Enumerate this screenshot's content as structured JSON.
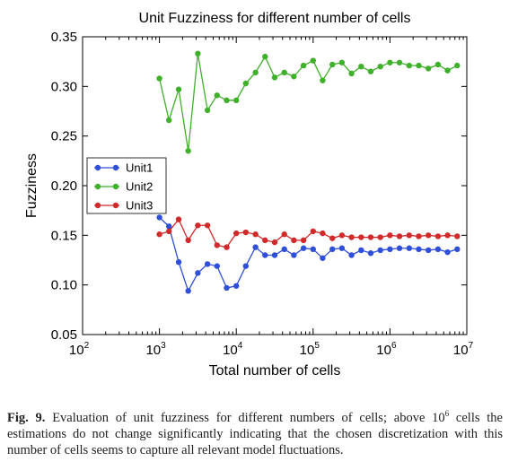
{
  "chart_data": {
    "type": "line",
    "title": "Unit Fuzziness for different number of cells",
    "xlabel": "Total number of cells",
    "ylabel": "Fuzziness",
    "x_scale": "log",
    "xlim": [
      100,
      10000000
    ],
    "ylim": [
      0.05,
      0.35
    ],
    "x_ticks": [
      {
        "base": "10",
        "exp": "2",
        "value": 100
      },
      {
        "base": "10",
        "exp": "3",
        "value": 1000
      },
      {
        "base": "10",
        "exp": "4",
        "value": 10000
      },
      {
        "base": "10",
        "exp": "5",
        "value": 100000
      },
      {
        "base": "10",
        "exp": "6",
        "value": 1000000
      },
      {
        "base": "10",
        "exp": "7",
        "value": 10000000
      }
    ],
    "y_ticks": [
      "0.05",
      "0.10",
      "0.15",
      "0.20",
      "0.25",
      "0.30",
      "0.35"
    ],
    "grid": false,
    "legend_position": "center-left",
    "x": [
      1000,
      1330,
      1780,
      2370,
      3160,
      4220,
      5620,
      7500,
      10000,
      13300,
      17800,
      23700,
      31600,
      42200,
      56200,
      75000,
      100000,
      133000,
      178000,
      237000,
      316000,
      422000,
      562000,
      750000,
      1000000,
      1330000,
      1780000,
      2370000,
      3160000,
      4220000,
      5620000,
      7500000
    ],
    "series": [
      {
        "name": "Unit1",
        "color": "#2f4fd8",
        "values": [
          0.168,
          0.159,
          0.123,
          0.094,
          0.112,
          0.121,
          0.119,
          0.097,
          0.099,
          0.119,
          0.138,
          0.13,
          0.13,
          0.136,
          0.13,
          0.137,
          0.136,
          0.127,
          0.136,
          0.137,
          0.13,
          0.135,
          0.132,
          0.135,
          0.136,
          0.137,
          0.137,
          0.136,
          0.135,
          0.136,
          0.133,
          0.136
        ]
      },
      {
        "name": "Unit2",
        "color": "#3fb02a",
        "values": [
          0.308,
          0.266,
          0.297,
          0.235,
          0.333,
          0.276,
          0.291,
          0.286,
          0.286,
          0.303,
          0.314,
          0.33,
          0.309,
          0.314,
          0.31,
          0.321,
          0.326,
          0.306,
          0.322,
          0.324,
          0.313,
          0.32,
          0.315,
          0.32,
          0.324,
          0.324,
          0.321,
          0.321,
          0.318,
          0.322,
          0.316,
          0.321
        ]
      },
      {
        "name": "Unit3",
        "color": "#d02a2a",
        "values": [
          0.151,
          0.154,
          0.166,
          0.145,
          0.16,
          0.16,
          0.14,
          0.138,
          0.152,
          0.153,
          0.151,
          0.145,
          0.143,
          0.151,
          0.145,
          0.145,
          0.154,
          0.152,
          0.147,
          0.15,
          0.148,
          0.148,
          0.148,
          0.148,
          0.15,
          0.149,
          0.15,
          0.149,
          0.15,
          0.149,
          0.15,
          0.149
        ]
      }
    ]
  },
  "caption": {
    "label": "Fig. 9.",
    "text_before_sup": " Evaluation of unit fuzziness for different numbers of cells; above 10",
    "sup": "6",
    "text_after_sup": " cells the estimations do not change significantly indicating that the chosen discretization with this number of cells seems to capture all relevant model fluctuations."
  }
}
